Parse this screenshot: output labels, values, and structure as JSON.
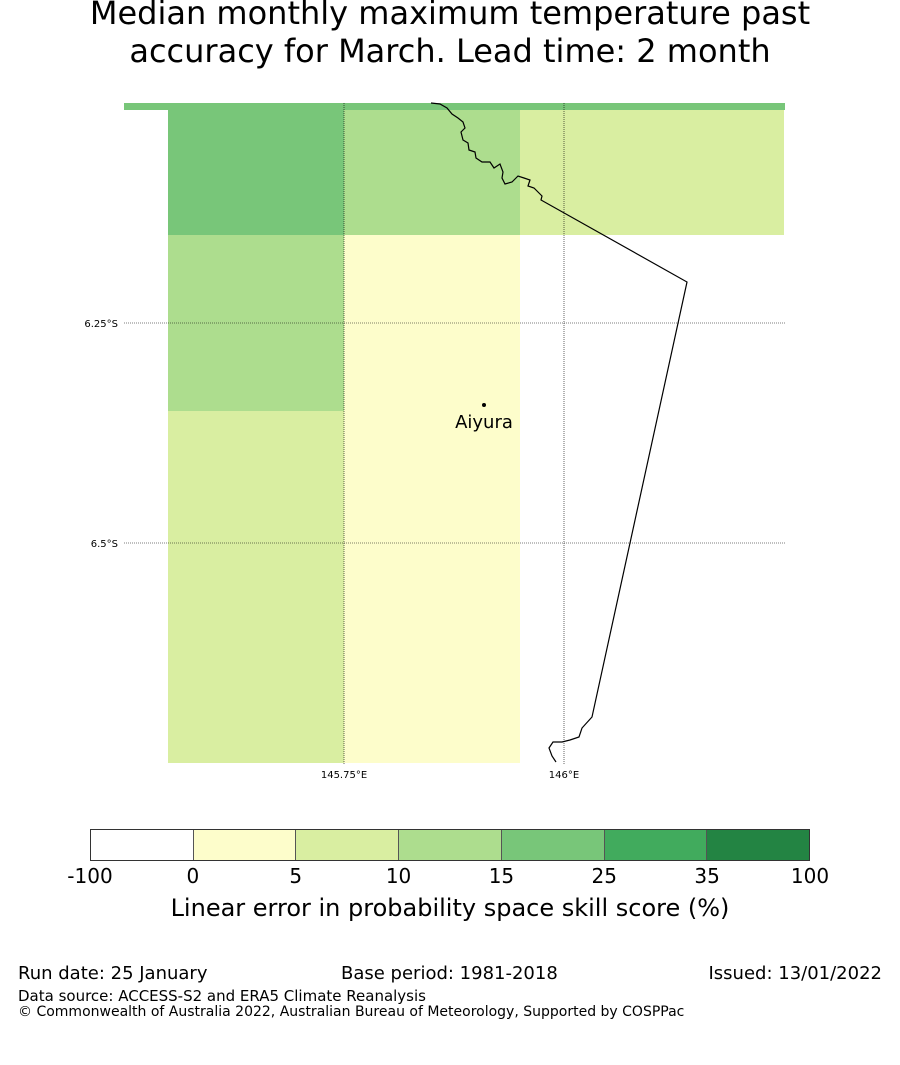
{
  "title": {
    "line1": "Median monthly maximum temperature past",
    "line2": "accuracy for March. Lead time: 2 month"
  },
  "map": {
    "lat_labels": [
      "6.25°S",
      "6.5°S"
    ],
    "lon_labels": [
      "145.75°E",
      "146°E"
    ],
    "place": "Aiyura",
    "cells": [
      {
        "lon": [
          145.55,
          145.75
        ],
        "lat": [
          -5.93,
          -6.15
        ],
        "bin": 4
      },
      {
        "lon": [
          145.75,
          145.95
        ],
        "lat": [
          -5.93,
          -6.15
        ],
        "bin": 3
      },
      {
        "lon": [
          145.95,
          146.25
        ],
        "lat": [
          -5.93,
          -6.15
        ],
        "bin": 2
      },
      {
        "lon": [
          145.55,
          145.75
        ],
        "lat": [
          -6.15,
          -6.35
        ],
        "bin": 3
      },
      {
        "lon": [
          145.75,
          145.95
        ],
        "lat": [
          -6.15,
          -6.35
        ],
        "bin": 1
      },
      {
        "lon": [
          145.95,
          146.25
        ],
        "lat": [
          -6.15,
          -6.35
        ],
        "bin": 0
      },
      {
        "lon": [
          145.55,
          145.75
        ],
        "lat": [
          -6.35,
          -6.75
        ],
        "bin": 2
      },
      {
        "lon": [
          145.75,
          145.95
        ],
        "lat": [
          -6.35,
          -6.75
        ],
        "bin": 1
      },
      {
        "lon": [
          145.95,
          146.25
        ],
        "lat": [
          -6.35,
          -6.75
        ],
        "bin": 0
      }
    ]
  },
  "colorbar": {
    "colors": [
      "#ffffff",
      "#fdfdcb",
      "#d9eea1",
      "#addd8e",
      "#78c679",
      "#41ab5d",
      "#238443"
    ],
    "ticks": [
      "-100",
      "0",
      "5",
      "10",
      "15",
      "25",
      "35",
      "100"
    ],
    "label": "Linear error in probability space skill score (%)"
  },
  "footer": {
    "run_date": "Run date: 25 January",
    "base_period": "Base period: 1981-2018",
    "issued": "Issued: 13/01/2022",
    "data_source": "Data source: ACCESS-S2 and ERA5 Climate Reanalysis",
    "copyright": "© Commonwealth of Australia 2022, Australian Bureau of Meteorology, Supported by COSPPac"
  }
}
